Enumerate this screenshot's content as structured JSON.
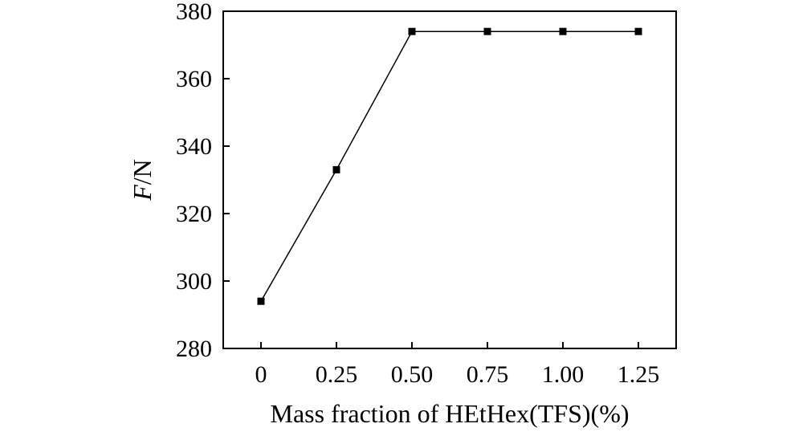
{
  "chart_data": {
    "type": "line",
    "x": [
      0,
      0.25,
      0.5,
      0.75,
      1.0,
      1.25
    ],
    "categories": [
      "0",
      "0.25",
      "0.50",
      "0.75",
      "1.00",
      "1.25"
    ],
    "series": [
      {
        "values": [
          294,
          333,
          374,
          374,
          374,
          374
        ]
      }
    ],
    "xlabel": "Mass fraction of HEtHex(TFS)(%)",
    "ylabel_var": "F",
    "ylabel_unit": "/N",
    "yticks": [
      "280",
      "300",
      "320",
      "340",
      "360",
      "380"
    ],
    "ylim": [
      280,
      380
    ],
    "xlim": [
      -0.125,
      1.375
    ],
    "grid": false,
    "marker": "square",
    "color": "#000000"
  }
}
